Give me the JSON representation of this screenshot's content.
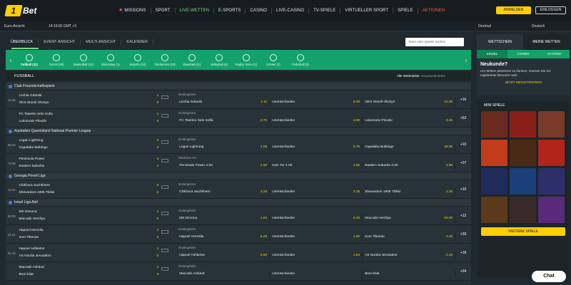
{
  "logo": {
    "badge": "1",
    "text": "Bet"
  },
  "nav": {
    "items": [
      {
        "label": "MISSIONS",
        "style": "missions"
      },
      {
        "label": "SPORT",
        "style": ""
      },
      {
        "label": "LIVE-WETTEN",
        "style": "active"
      },
      {
        "label": "E-SPORTS",
        "style": ""
      },
      {
        "label": "CASINO",
        "style": ""
      },
      {
        "label": "LIVE-CASINO",
        "style": ""
      },
      {
        "label": "TV-SPIELE",
        "style": ""
      },
      {
        "label": "VIRTUELLER SPORT",
        "style": ""
      },
      {
        "label": "SPIELE",
        "style": ""
      },
      {
        "label": "AKTIONEN",
        "style": "red"
      }
    ]
  },
  "auth": {
    "login": "ANMELDEN",
    "signin": "EINLOGGEN"
  },
  "subbar": {
    "timezone": "Euro-Ansicht",
    "time": "14:19:02 GMT +3",
    "odds": "Dezimal",
    "lang": "Deutsch"
  },
  "tabs": [
    "ÜBERBLICK",
    "EVENT-ANSICHT",
    "MULTI-ANSICHT",
    "KALENDER"
  ],
  "search": {
    "placeholder": "Team oder Spieler suchen"
  },
  "sports": [
    {
      "label": "Fußball (31)",
      "active": true
    },
    {
      "label": "Tennis (25)"
    },
    {
      "label": "Basketball (14)"
    },
    {
      "label": "Eishockey (1)"
    },
    {
      "label": "Esports (10)"
    },
    {
      "label": "Tischtennis (23)"
    },
    {
      "label": "Baseball (11)"
    },
    {
      "label": "Volleyball (4)"
    },
    {
      "label": "Rugby Union (1)"
    },
    {
      "label": "Cricket (2)"
    },
    {
      "label": "Federball (3)"
    }
  ],
  "section": {
    "title": "FUSSBALL",
    "all_markets": "Alle Wettmärkte",
    "main_markets": "Hauptwettmärkte"
  },
  "leagues": [
    {
      "name": "Club-Freundschaftsspiele",
      "matches": [
        {
          "time": "18:59",
          "home": "Lechia Gdansk",
          "away": "OKS Stomil Olsztyn",
          "s1": "1",
          "s2": "0",
          "market": "Endergebnis",
          "o1n": "Lechia Gdansk",
          "o1": "1.11",
          "oxn": "Unentschieden",
          "ox": "8.00",
          "o2n": "OKS Stomil Olsztyn",
          "o2": "12.00",
          "more": "+16"
        },
        {
          "time": "",
          "home": "FC Tsarsko Selo Sofia",
          "away": "Lokomotiv Plovdiv",
          "s1": "1",
          "s2": "0",
          "market": "Endergebnis",
          "o1n": "FC Tsarsko Selo Sofia",
          "o1": "2.70",
          "oxn": "Unentschieden",
          "ox": "3.00",
          "o2n": "Lokomotiv Plovdiv",
          "o2": "2.45",
          "more": "+52"
        }
      ]
    },
    {
      "name": "Australien Queensland National Premier League",
      "matches": [
        {
          "time": "89:46",
          "home": "Logan Lightning",
          "away": "Capalaba Bulldogs",
          "s1": "3",
          "s2": "2",
          "market": "Endergebnis",
          "o1n": "Logan Lightning",
          "o1": "1.06",
          "oxn": "Unentschieden",
          "ox": "8.75",
          "o2n": "Capalaba Bulldogs",
          "o2": "38.00",
          "more": "+10"
        },
        {
          "time": "73:05",
          "home": "Peninsula Power",
          "away": "Eastern Suburbs",
          "s1": "3",
          "s2": "1",
          "market": "Nächstes Tor",
          "o1n": "Peninsula Power  4.00",
          "o1": "2.00",
          "oxn": "Kein Tor  4.00",
          "ox": "2.65",
          "o2n": "Eastern Suburbs  4.00",
          "o2": "4.80",
          "more": "+37"
        }
      ]
    },
    {
      "name": "Georgia Pirveli Liga",
      "matches": [
        {
          "time": "12:21",
          "home": "Chikhura Sachkhere",
          "away": "Shevardeni 1906 Tbilisi",
          "s1": "0",
          "s2": "0",
          "market": "Endergebnis",
          "o1n": "Chikhura Sachkhere",
          "o1": "2.25",
          "oxn": "Unentschieden",
          "ox": "2.25",
          "o2n": "Shevardeni 1906 Tbilisi",
          "o2": "2.25",
          "more": "+10"
        }
      ]
    },
    {
      "name": "Israel Liga Alef",
      "matches": [
        {
          "time": "88:08",
          "home": "MS Dimona",
          "away": "Maccabi Herzliya",
          "s1": "1",
          "s2": "0",
          "market": "Endergebnis",
          "o1n": "MS Dimona",
          "o1": "1.04",
          "oxn": "Unentschieden",
          "ox": "8.25",
          "o2n": "Maccabi Herzliya",
          "o2": "63.00",
          "more": "+12"
        },
        {
          "time": "61:21",
          "home": "Hapoel Herzelia",
          "away": "Ironi Tiberias",
          "s1": "1",
          "s2": "0",
          "market": "Endergebnis",
          "o1n": "Hapoel Herzelia",
          "o1": "5.25",
          "oxn": "Unentschieden",
          "ox": "1.90",
          "o2n": "Ironi Tiberias",
          "o2": "2.45",
          "more": "+33"
        },
        {
          "time": "62:16",
          "home": "Hapoel Ashkelon",
          "away": "AS Nordia Jerusalem",
          "s1": "1",
          "s2": "0",
          "market": "Endergebnis",
          "o1n": "Hapoel Ashkelon",
          "o1": "6.50",
          "oxn": "Unentschieden",
          "ox": "1.84",
          "o2n": "AS Nordia Jerusalem",
          "o2": "2.45",
          "more": "+18"
        },
        {
          "time": "",
          "home": "Maccabi Ashdod",
          "away": "Bnei Eilat",
          "s1": "1",
          "s2": "0",
          "market": "Endergebnis",
          "o1n": "Maccabi Ashdod",
          "o1": "",
          "oxn": "Unentschieden",
          "ox": "",
          "o2n": "Bnei Eilat",
          "o2": "",
          "more": "+34"
        }
      ]
    }
  ],
  "betslip": {
    "tabs": [
      "WETTSCHEIN",
      "MEINE WETTEN"
    ],
    "subtabs": [
      "EINZEL",
      "COMBO",
      "SYSTEM"
    ],
    "title": "Neukunde?",
    "text": "Um Wetten platzieren zu können, müssen Sie ein registrierter Benutzer sein.",
    "register": "JETZT REGISTRIEREN"
  },
  "mini": {
    "title": "MINI SPIELE",
    "more": "WEITERE SPIELE",
    "colors": [
      "#6a2a1f",
      "#8a1f1a",
      "#7a3a2a",
      "#c23b1a",
      "#4a2a14",
      "#b0241a",
      "#1f2b5a",
      "#1a3f7a",
      "#2d2f6a",
      "#5a3a1a",
      "#3a2a2a",
      "#5a2a7a"
    ]
  },
  "chat": {
    "label": "Chat"
  }
}
